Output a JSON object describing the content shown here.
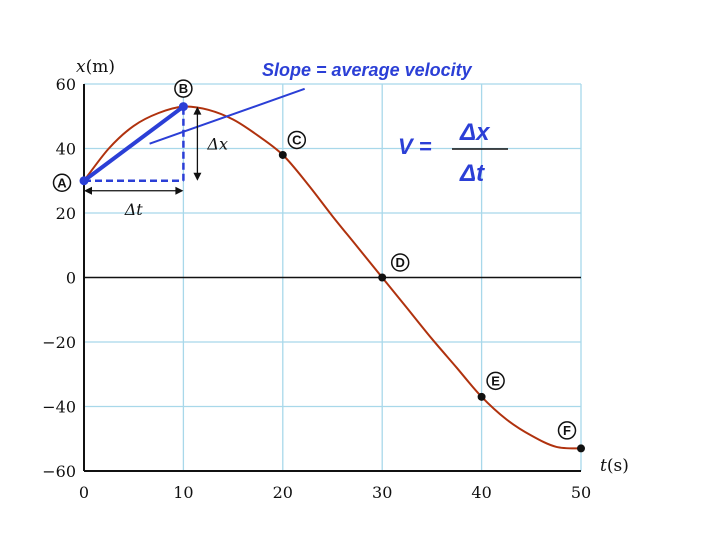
{
  "chart_data": {
    "type": "line",
    "title": "",
    "xlabel": "t",
    "xunit": "(s)",
    "ylabel": "x",
    "yunit": "(m)",
    "xlim": [
      0,
      50
    ],
    "ylim": [
      -60,
      60
    ],
    "x_ticks": [
      0,
      10,
      20,
      30,
      40,
      50
    ],
    "y_ticks": [
      60,
      40,
      20,
      0,
      -20,
      -40,
      -60
    ],
    "y_tick_labels": [
      "60",
      "40",
      "20",
      "0",
      "−20",
      "−40",
      "−60"
    ],
    "grid": true,
    "grid_color": "#a8d8ea",
    "curve_color": "#b0320e",
    "accent_color": "#2b3fd6",
    "series": [
      {
        "x": [
          0,
          2.5,
          5,
          7.5,
          10,
          12.5,
          15,
          17.5,
          20,
          22.5,
          25,
          27.5,
          30,
          32.5,
          35,
          37.5,
          40,
          42.5,
          45,
          47.5,
          50
        ],
        "values": [
          30,
          40,
          47,
          51,
          53,
          52,
          49,
          44,
          38,
          29,
          19,
          9.5,
          0,
          -9.5,
          -19,
          -28,
          -37,
          -44,
          -49,
          -52.5,
          -53
        ]
      }
    ],
    "points": [
      {
        "label": "A",
        "x": 0,
        "y": 30
      },
      {
        "label": "B",
        "x": 10,
        "y": 53
      },
      {
        "label": "C",
        "x": 20,
        "y": 38
      },
      {
        "label": "D",
        "x": 30,
        "y": 0
      },
      {
        "label": "E",
        "x": 40,
        "y": -37
      },
      {
        "label": "F",
        "x": 50,
        "y": -53
      }
    ],
    "annotations": {
      "slope_text": "Slope = average velocity",
      "v_symbol": "V =",
      "numerator": "Δx",
      "denominator": "Δt",
      "delta_x": "Δx",
      "delta_t": "Δt"
    }
  }
}
